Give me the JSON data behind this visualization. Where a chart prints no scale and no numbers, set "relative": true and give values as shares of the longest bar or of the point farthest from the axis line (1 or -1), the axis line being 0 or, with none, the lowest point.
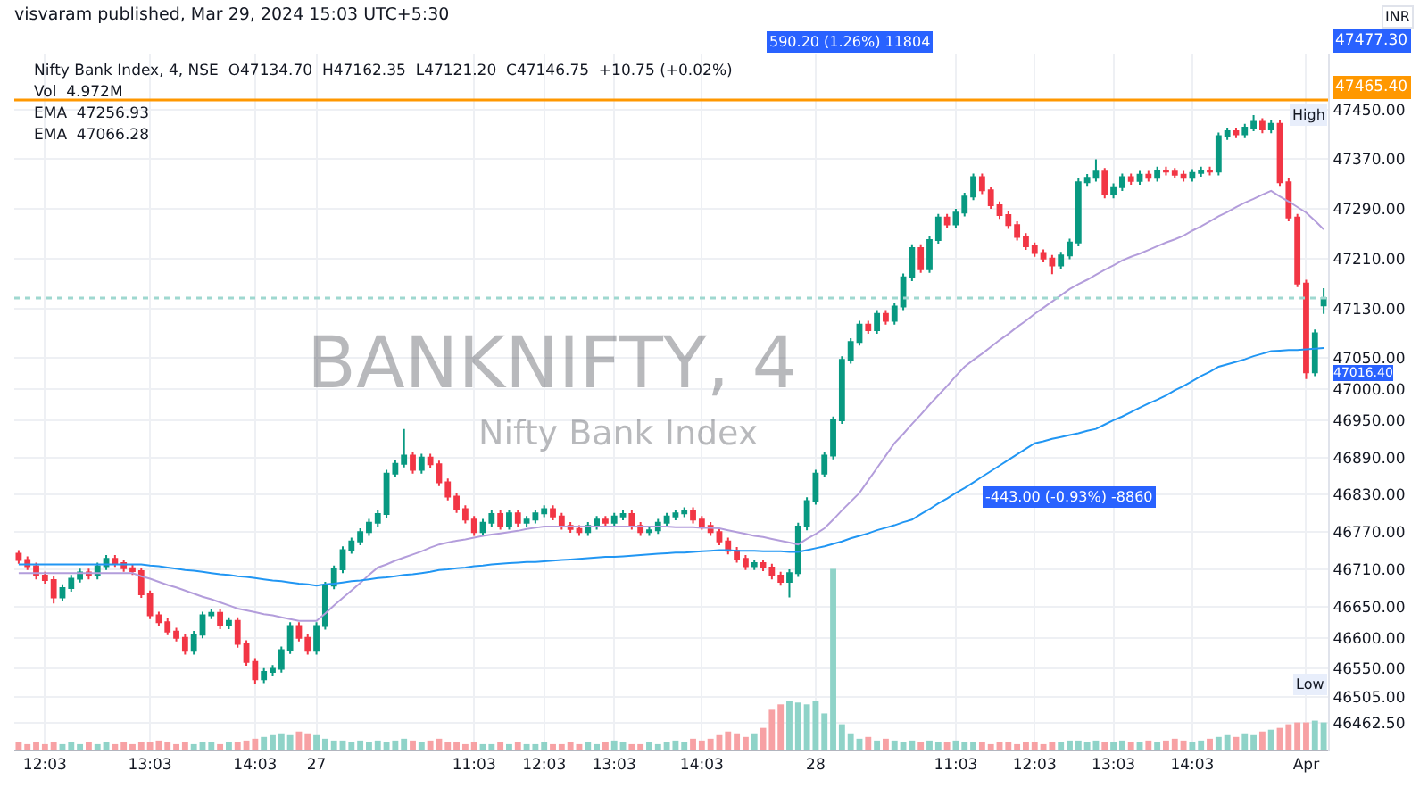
{
  "chart_data": [
    {
      "type": "candlestick",
      "title": "visvaram published, Mar 29, 2024 15:03 UTC+5:30",
      "categories": [
        null,
        null,
        null,
        "12:03",
        null,
        null,
        null,
        null,
        null,
        null,
        null,
        null,
        null,
        null,
        null,
        "13:03",
        null,
        null,
        null,
        null,
        null,
        null,
        null,
        null,
        null,
        null,
        null,
        "14:03",
        null,
        null,
        null,
        null,
        null,
        null,
        "27",
        null,
        null,
        null,
        null,
        null,
        null,
        null,
        null,
        null,
        null,
        null,
        null,
        null,
        null,
        null,
        null,
        null,
        "11:03",
        null,
        null,
        null,
        null,
        null,
        null,
        null,
        "12:03",
        null,
        null,
        null,
        null,
        null,
        null,
        null,
        "13:03",
        null,
        null,
        null,
        null,
        null,
        null,
        null,
        null,
        null,
        "14:03",
        null,
        null,
        null,
        null,
        null,
        null,
        null,
        null,
        null,
        null,
        null,
        null,
        "28",
        null,
        null,
        null,
        null,
        null,
        null,
        null,
        null,
        null,
        null,
        null,
        null,
        null,
        null,
        null,
        "11:03",
        null,
        null,
        null,
        null,
        null,
        null,
        null,
        null,
        "12:03",
        null,
        null,
        null,
        null,
        null,
        null,
        null,
        null,
        "13:03",
        null,
        null,
        null,
        null,
        null,
        null,
        null,
        null,
        "14:03",
        null,
        null,
        null,
        null,
        null,
        null,
        null,
        null,
        null,
        null,
        null,
        null,
        "Apr",
        null,
        null
      ],
      "ohlc": [
        [
          46735,
          46741,
          46719,
          46725
        ],
        [
          46725,
          46731,
          46709,
          46715
        ],
        [
          46715,
          46721,
          46694,
          46700
        ],
        [
          46700,
          46706,
          46687,
          46693
        ],
        [
          46693,
          46699,
          46655,
          46665
        ],
        [
          46665,
          46686,
          46659,
          46680
        ],
        [
          46680,
          46701,
          46674,
          46695
        ],
        [
          46695,
          46711,
          46689,
          46705
        ],
        [
          46705,
          46711,
          46694,
          46700
        ],
        [
          46700,
          46721,
          46694,
          46715
        ],
        [
          46715,
          46733,
          46709,
          46727
        ],
        [
          46727,
          46733,
          46714,
          46720
        ],
        [
          46720,
          46726,
          46706,
          46712
        ],
        [
          46712,
          46718,
          46701,
          46707
        ],
        [
          46707,
          46713,
          46664,
          46670
        ],
        [
          46670,
          46676,
          46630,
          46636
        ],
        [
          46636,
          46642,
          46619,
          46625
        ],
        [
          46625,
          46631,
          46604,
          46610
        ],
        [
          46610,
          46616,
          46594,
          46600
        ],
        [
          46600,
          46606,
          46573,
          46579
        ],
        [
          46579,
          46611,
          46573,
          46605
        ],
        [
          46605,
          46642,
          46599,
          46636
        ],
        [
          46636,
          46646,
          46630,
          46640
        ],
        [
          46640,
          46646,
          46614,
          46620
        ],
        [
          46620,
          46633,
          46614,
          46627
        ],
        [
          46627,
          46633,
          46584,
          46590
        ],
        [
          46590,
          46596,
          46555,
          46561
        ],
        [
          46561,
          46567,
          46525,
          46533
        ],
        [
          46533,
          46551,
          46527,
          46545
        ],
        [
          46545,
          46556,
          46539,
          46550
        ],
        [
          46550,
          46586,
          46544,
          46580
        ],
        [
          46580,
          46625,
          46574,
          46619
        ],
        [
          46619,
          46625,
          46594,
          46600
        ],
        [
          46600,
          46606,
          46573,
          46579
        ],
        [
          46579,
          46625,
          46573,
          46619
        ],
        [
          46619,
          46690,
          46613,
          46684
        ],
        [
          46684,
          46716,
          46678,
          46710
        ],
        [
          46710,
          46747,
          46704,
          46741
        ],
        [
          46741,
          46761,
          46735,
          46755
        ],
        [
          46755,
          46776,
          46749,
          46770
        ],
        [
          46770,
          46791,
          46764,
          46785
        ],
        [
          46785,
          46805,
          46779,
          46799
        ],
        [
          46799,
          46870,
          46793,
          46864
        ],
        [
          46864,
          46886,
          46858,
          46880
        ],
        [
          46880,
          46936,
          46874,
          46893
        ],
        [
          46893,
          46899,
          46864,
          46870
        ],
        [
          46870,
          46896,
          46864,
          46890
        ],
        [
          46890,
          46896,
          46873,
          46879
        ],
        [
          46879,
          46885,
          46844,
          46850
        ],
        [
          46850,
          46856,
          46821,
          46827
        ],
        [
          46827,
          46833,
          46801,
          46807
        ],
        [
          46807,
          46813,
          46784,
          46790
        ],
        [
          46790,
          46796,
          46764,
          46770
        ],
        [
          46770,
          46791,
          46764,
          46785
        ],
        [
          46785,
          46805,
          46779,
          46799
        ],
        [
          46799,
          46805,
          46774,
          46780
        ],
        [
          46780,
          46806,
          46774,
          46800
        ],
        [
          46800,
          46806,
          46779,
          46785
        ],
        [
          46785,
          46796,
          46779,
          46790
        ],
        [
          46790,
          46806,
          46784,
          46800
        ],
        [
          46800,
          46813,
          46794,
          46807
        ],
        [
          46807,
          46813,
          46789,
          46795
        ],
        [
          46795,
          46801,
          46774,
          46780
        ],
        [
          46780,
          46786,
          46769,
          46775
        ],
        [
          46775,
          46781,
          46764,
          46770
        ],
        [
          46770,
          46786,
          46764,
          46780
        ],
        [
          46780,
          46796,
          46774,
          46790
        ],
        [
          46790,
          46796,
          46779,
          46785
        ],
        [
          46785,
          46801,
          46779,
          46795
        ],
        [
          46795,
          46805,
          46789,
          46799
        ],
        [
          46799,
          46805,
          46774,
          46780
        ],
        [
          46780,
          46786,
          46764,
          46770
        ],
        [
          46770,
          46779,
          46764,
          46773
        ],
        [
          46773,
          46791,
          46767,
          46785
        ],
        [
          46785,
          46801,
          46779,
          46795
        ],
        [
          46795,
          46806,
          46789,
          46800
        ],
        [
          46800,
          46810,
          46794,
          46804
        ],
        [
          46804,
          46810,
          46784,
          46790
        ],
        [
          46790,
          46796,
          46774,
          46780
        ],
        [
          46780,
          46786,
          46764,
          46770
        ],
        [
          46770,
          46776,
          46749,
          46755
        ],
        [
          46755,
          46761,
          46734,
          46740
        ],
        [
          46740,
          46746,
          46721,
          46727
        ],
        [
          46727,
          46733,
          46709,
          46715
        ],
        [
          46715,
          46726,
          46709,
          46720
        ],
        [
          46720,
          46726,
          46707,
          46713
        ],
        [
          46713,
          46719,
          46694,
          46700
        ],
        [
          46700,
          46706,
          46684,
          46690
        ],
        [
          46690,
          46710,
          46665,
          46704
        ],
        [
          46704,
          46785,
          46698,
          46779
        ],
        [
          46779,
          46826,
          46773,
          46820
        ],
        [
          46820,
          46870,
          46814,
          46864
        ],
        [
          46864,
          46899,
          46858,
          46893
        ],
        [
          46893,
          46956,
          46887,
          46950
        ],
        [
          46950,
          47053,
          46944,
          47047
        ],
        [
          47047,
          47082,
          47041,
          47076
        ],
        [
          47076,
          47110,
          47070,
          47104
        ],
        [
          47104,
          47110,
          47089,
          47095
        ],
        [
          47095,
          47127,
          47089,
          47121
        ],
        [
          47121,
          47127,
          47104,
          47110
        ],
        [
          47110,
          47139,
          47104,
          47133
        ],
        [
          47133,
          47186,
          47127,
          47180
        ],
        [
          47180,
          47233,
          47174,
          47227
        ],
        [
          47227,
          47233,
          47187,
          47193
        ],
        [
          47193,
          47246,
          47187,
          47240
        ],
        [
          47240,
          47282,
          47234,
          47276
        ],
        [
          47276,
          47282,
          47259,
          47265
        ],
        [
          47265,
          47290,
          47259,
          47284
        ],
        [
          47284,
          47316,
          47278,
          47310
        ],
        [
          47310,
          47347,
          47304,
          47341
        ],
        [
          47341,
          47347,
          47314,
          47320
        ],
        [
          47320,
          47326,
          47290,
          47296
        ],
        [
          47296,
          47302,
          47274,
          47280
        ],
        [
          47280,
          47286,
          47258,
          47264
        ],
        [
          47264,
          47270,
          47239,
          47245
        ],
        [
          47245,
          47251,
          47224,
          47230
        ],
        [
          47230,
          47236,
          47213,
          47219
        ],
        [
          47219,
          47225,
          47204,
          47210
        ],
        [
          47210,
          47216,
          47185,
          47199
        ],
        [
          47199,
          47221,
          47193,
          47215
        ],
        [
          47215,
          47242,
          47209,
          47236
        ],
        [
          47236,
          47339,
          47230,
          47333
        ],
        [
          47333,
          47346,
          47327,
          47340
        ],
        [
          47340,
          47370,
          47334,
          47350
        ],
        [
          47350,
          47356,
          47307,
          47313
        ],
        [
          47313,
          47331,
          47307,
          47325
        ],
        [
          47325,
          47347,
          47319,
          47341
        ],
        [
          47341,
          47347,
          47329,
          47335
        ],
        [
          47335,
          47351,
          47329,
          47345
        ],
        [
          47345,
          47351,
          47334,
          47340
        ],
        [
          47340,
          47358,
          47334,
          47352
        ],
        [
          47352,
          47358,
          47344,
          47350
        ],
        [
          47350,
          47356,
          47339,
          47345
        ],
        [
          47345,
          47351,
          47334,
          47340
        ],
        [
          47340,
          47354,
          47334,
          47348
        ],
        [
          47348,
          47358,
          47342,
          47352
        ],
        [
          47352,
          47358,
          47344,
          47350
        ],
        [
          47350,
          47413,
          47344,
          47407
        ],
        [
          47407,
          47421,
          47401,
          47415
        ],
        [
          47415,
          47421,
          47404,
          47410
        ],
        [
          47410,
          47427,
          47404,
          47421
        ],
        [
          47421,
          47441,
          47415,
          47430
        ],
        [
          47430,
          47436,
          47412,
          47418
        ],
        [
          47418,
          47433,
          47412,
          47427
        ],
        [
          47427,
          47433,
          47327,
          47333
        ],
        [
          47333,
          47339,
          47270,
          47276
        ],
        [
          47276,
          47282,
          47164,
          47170
        ],
        [
          47170,
          47176,
          47016.4,
          47027
        ],
        [
          47027,
          47096,
          47021,
          47090
        ],
        [
          47134.7,
          47162.35,
          47121.2,
          47146.75
        ]
      ],
      "colors": [
        "#f23645",
        "#f23645",
        "#f23645",
        "#f23645",
        "#f23645",
        "#089981",
        "#089981",
        "#089981",
        "#f23645",
        "#089981",
        "#089981",
        "#f23645",
        "#f23645",
        "#f23645",
        "#f23645",
        "#f23645",
        "#f23645",
        "#f23645",
        "#f23645",
        "#f23645",
        "#089981",
        "#089981",
        "#089981",
        "#f23645",
        "#089981",
        "#f23645",
        "#f23645",
        "#f23645",
        "#089981",
        "#089981",
        "#089981",
        "#089981",
        "#f23645",
        "#f23645",
        "#089981",
        "#089981",
        "#089981",
        "#089981",
        "#089981",
        "#089981",
        "#089981",
        "#089981",
        "#089981",
        "#089981",
        "#089981",
        "#f23645",
        "#089981",
        "#f23645",
        "#f23645",
        "#f23645",
        "#f23645",
        "#f23645",
        "#f23645",
        "#089981",
        "#089981",
        "#f23645",
        "#089981",
        "#f23645",
        "#089981",
        "#089981",
        "#089981",
        "#f23645",
        "#f23645",
        "#f23645",
        "#f23645",
        "#089981",
        "#089981",
        "#f23645",
        "#089981",
        "#089981",
        "#f23645",
        "#f23645",
        "#089981",
        "#089981",
        "#089981",
        "#089981",
        "#089981",
        "#f23645",
        "#f23645",
        "#f23645",
        "#f23645",
        "#f23645",
        "#f23645",
        "#f23645",
        "#089981",
        "#f23645",
        "#f23645",
        "#f23645",
        "#089981",
        "#089981",
        "#089981",
        "#089981",
        "#089981",
        "#089981",
        "#089981",
        "#089981",
        "#089981",
        "#f23645",
        "#089981",
        "#f23645",
        "#089981",
        "#089981",
        "#089981",
        "#f23645",
        "#089981",
        "#089981",
        "#f23645",
        "#089981",
        "#089981",
        "#089981",
        "#f23645",
        "#f23645",
        "#f23645",
        "#f23645",
        "#f23645",
        "#f23645",
        "#f23645",
        "#f23645",
        "#f23645",
        "#089981",
        "#089981",
        "#089981",
        "#089981",
        "#089981",
        "#f23645",
        "#089981",
        "#089981",
        "#f23645",
        "#089981",
        "#f23645",
        "#089981",
        "#f23645",
        "#f23645",
        "#f23645",
        "#089981",
        "#089981",
        "#f23645",
        "#089981",
        "#089981",
        "#f23645",
        "#089981",
        "#089981",
        "#f23645",
        "#089981",
        "#f23645",
        "#f23645",
        "#f23645",
        "#f23645",
        "#089981",
        "#089981"
      ],
      "series": [
        {
          "type": "line",
          "color": "#b39ddb",
          "values": [
            46704,
            46704,
            46704,
            46704,
            46704,
            46704,
            46704,
            46704,
            46704,
            46704,
            46704,
            46704,
            46704,
            46704,
            46699,
            46695,
            46690,
            46685,
            46681,
            46676,
            46671,
            46666,
            46662,
            46657,
            46652,
            46647,
            46644,
            46641,
            46638,
            46636,
            46633,
            46630,
            46627,
            46627,
            46627,
            46639,
            46652,
            46664,
            46676,
            46688,
            46701,
            46713,
            46718,
            46724,
            46729,
            46734,
            46739,
            46745,
            46750,
            46753,
            46756,
            46758,
            46761,
            46764,
            46766,
            46768,
            46770,
            46772,
            46775,
            46777,
            46779,
            46779,
            46779,
            46779,
            46779,
            46779,
            46779,
            46779,
            46779,
            46779,
            46779,
            46779,
            46779,
            46779,
            46779,
            46778,
            46778,
            46778,
            46777,
            46777,
            46776,
            46773,
            46770,
            46767,
            46764,
            46762,
            46759,
            46756,
            46753,
            46750,
            46759,
            46767,
            46776,
            46790,
            46805,
            46819,
            46833,
            46853,
            46873,
            46893,
            46913,
            46928,
            46944,
            46959,
            46975,
            46990,
            47005,
            47021,
            47036,
            47047,
            47057,
            47068,
            47079,
            47089,
            47100,
            47110,
            47121,
            47131,
            47141,
            47151,
            47161,
            47169,
            47176,
            47184,
            47192,
            47199,
            47207,
            47213,
            47218,
            47224,
            47230,
            47236,
            47241,
            47247,
            47255,
            47262,
            47270,
            47278,
            47285,
            47293,
            47300,
            47306,
            47313,
            47319,
            47310,
            47302,
            47293,
            47284,
            47271,
            47257
          ]
        },
        {
          "type": "line",
          "color": "#2196f3",
          "values": [
            46718,
            46718,
            46718,
            46718,
            46718,
            46718,
            46718,
            46718,
            46718,
            46718,
            46718,
            46718,
            46718,
            46718,
            46718,
            46716,
            46715,
            46713,
            46711,
            46709,
            46708,
            46706,
            46704,
            46702,
            46701,
            46699,
            46698,
            46696,
            46694,
            46692,
            46691,
            46689,
            46687,
            46686,
            46684,
            46686,
            46687,
            46689,
            46691,
            46692,
            46694,
            46696,
            46697,
            46699,
            46701,
            46702,
            46704,
            46706,
            46709,
            46710,
            46712,
            46713,
            46715,
            46716,
            46718,
            46719,
            46720,
            46721,
            46722,
            46722,
            46723,
            46724,
            46725,
            46726,
            46727,
            46728,
            46729,
            46730,
            46730,
            46731,
            46732,
            46733,
            46734,
            46735,
            46736,
            46737,
            46737,
            46738,
            46739,
            46740,
            46741,
            46741,
            46740,
            46740,
            46740,
            46739,
            46739,
            46739,
            46738,
            46738,
            46741,
            46744,
            46747,
            46751,
            46755,
            46760,
            46764,
            46768,
            46773,
            46777,
            46781,
            46786,
            46790,
            46799,
            46807,
            46816,
            46824,
            46833,
            46841,
            46850,
            46859,
            46868,
            46877,
            46886,
            46895,
            46904,
            46913,
            46916,
            46920,
            46923,
            46926,
            46929,
            46933,
            46936,
            46943,
            46950,
            46956,
            46963,
            46970,
            46977,
            46983,
            46990,
            46998,
            47005,
            47013,
            47021,
            47028,
            47036,
            47040,
            47044,
            47048,
            47053,
            47057,
            47061,
            47062,
            47063,
            47063,
            47064,
            47065,
            47066
          ]
        }
      ],
      "ylim": [
        46420,
        47540
      ],
      "yticks": [
        {
          "value": 46462.5,
          "label": "46462.50"
        },
        {
          "value": 46505,
          "label": "46505.00"
        },
        {
          "value": 46550,
          "label": "46550.00"
        },
        {
          "value": 46600,
          "label": "46600.00"
        },
        {
          "value": 46650,
          "label": "46650.00"
        },
        {
          "value": 46710,
          "label": "46710.00"
        },
        {
          "value": 46770,
          "label": "46770.00"
        },
        {
          "value": 46830,
          "label": "46830.00"
        },
        {
          "value": 46890,
          "label": "46890.00"
        },
        {
          "value": 46950,
          "label": "46950.00"
        },
        {
          "value": 47000,
          "label": "47000.00"
        },
        {
          "value": 47050,
          "label": "47050.00"
        },
        {
          "value": 47130,
          "label": "47130.00"
        },
        {
          "value": 47210,
          "label": "47210.00"
        },
        {
          "value": 47290,
          "label": "47290.00"
        },
        {
          "value": 47370,
          "label": "47370.00"
        },
        {
          "value": 47450,
          "label": "47450.00"
        }
      ],
      "grid": true,
      "ref_lines": [
        {
          "axis": "y",
          "value": 47465.4,
          "label": "47465.40",
          "color": "#ff9800"
        },
        {
          "axis": "y",
          "value": 47146.75,
          "color": "#9fd8d0",
          "line_style": "dotted"
        }
      ],
      "annotations": [
        "Nifty Bank Index, 4, NSE  O47134.70  H47162.35  L47121.20  C47146.75  +10.75 (+0.02%)",
        "Vol  4.972M",
        "EMA  47256.93",
        "EMA  47066.28",
        "BANKNIFTY, 4",
        "Nifty Bank Index",
        "INR",
        "590.20 (1.26%) 11804",
        "-443.00 (-0.93%) -8860",
        "47477.30",
        "47016.40",
        {
          "text": "High",
          "y": 47441
        },
        {
          "text": "Low",
          "y": 46525
        }
      ]
    },
    {
      "type": "bar",
      "relative": true,
      "categories": [
        null,
        null,
        null,
        null,
        null,
        null,
        null,
        null,
        null,
        null,
        null,
        null,
        null,
        null,
        null,
        null,
        null,
        null,
        null,
        null,
        null,
        null,
        null,
        null,
        null,
        null,
        null,
        null,
        null,
        null,
        null,
        null,
        null,
        null,
        null,
        null,
        null,
        null,
        null,
        null,
        null,
        null,
        null,
        null,
        null,
        null,
        null,
        null,
        null,
        null,
        null,
        null,
        null,
        null,
        null,
        null,
        null,
        null,
        null,
        null,
        null,
        null,
        null,
        null,
        null,
        null,
        null,
        null,
        null,
        null,
        null,
        null,
        null,
        null,
        null,
        null,
        null,
        null,
        null,
        null,
        null,
        null,
        null,
        null,
        null,
        null,
        null,
        null,
        null,
        null,
        null,
        null,
        null,
        null,
        null,
        null,
        null,
        null,
        null,
        null,
        null,
        null,
        null,
        null,
        null,
        null,
        null,
        null,
        null,
        null,
        null,
        null,
        null,
        null,
        null,
        null,
        null,
        null,
        null,
        null,
        null,
        null,
        null,
        null,
        null,
        null,
        null,
        null,
        null,
        null,
        null,
        null,
        null,
        null,
        null,
        null,
        null,
        null,
        null,
        null,
        null,
        null,
        null,
        null,
        null,
        null,
        null,
        null,
        null,
        null
      ],
      "values": [
        0.04,
        0.03,
        0.04,
        0.03,
        0.04,
        0.03,
        0.04,
        0.03,
        0.04,
        0.03,
        0.04,
        0.03,
        0.04,
        0.03,
        0.04,
        0.04,
        0.05,
        0.04,
        0.03,
        0.04,
        0.03,
        0.04,
        0.04,
        0.03,
        0.04,
        0.04,
        0.05,
        0.06,
        0.07,
        0.08,
        0.09,
        0.08,
        0.1,
        0.09,
        0.08,
        0.06,
        0.05,
        0.05,
        0.04,
        0.05,
        0.04,
        0.05,
        0.04,
        0.05,
        0.06,
        0.05,
        0.04,
        0.05,
        0.06,
        0.04,
        0.04,
        0.03,
        0.04,
        0.03,
        0.03,
        0.04,
        0.03,
        0.04,
        0.03,
        0.03,
        0.04,
        0.03,
        0.03,
        0.04,
        0.03,
        0.04,
        0.03,
        0.04,
        0.05,
        0.04,
        0.03,
        0.03,
        0.04,
        0.03,
        0.04,
        0.05,
        0.04,
        0.06,
        0.05,
        0.06,
        0.08,
        0.1,
        0.09,
        0.07,
        0.09,
        0.12,
        0.22,
        0.25,
        0.27,
        0.26,
        0.25,
        0.27,
        0.2,
        1.0,
        0.14,
        0.09,
        0.06,
        0.07,
        0.05,
        0.06,
        0.05,
        0.04,
        0.05,
        0.04,
        0.05,
        0.04,
        0.04,
        0.05,
        0.04,
        0.04,
        0.04,
        0.03,
        0.04,
        0.04,
        0.03,
        0.04,
        0.04,
        0.03,
        0.04,
        0.04,
        0.05,
        0.05,
        0.04,
        0.05,
        0.04,
        0.04,
        0.05,
        0.04,
        0.04,
        0.05,
        0.04,
        0.05,
        0.06,
        0.05,
        0.04,
        0.05,
        0.06,
        0.07,
        0.08,
        0.07,
        0.09,
        0.08,
        0.1,
        0.11,
        0.12,
        0.14,
        0.15,
        0.15,
        0.16,
        0.15
      ],
      "colors": [
        "#f7a1a4",
        "#f7a1a4",
        "#f7a1a4",
        "#f7a1a4",
        "#f7a1a4",
        "#8fd3c8",
        "#8fd3c8",
        "#8fd3c8",
        "#f7a1a4",
        "#8fd3c8",
        "#8fd3c8",
        "#f7a1a4",
        "#f7a1a4",
        "#f7a1a4",
        "#f7a1a4",
        "#f7a1a4",
        "#f7a1a4",
        "#f7a1a4",
        "#f7a1a4",
        "#f7a1a4",
        "#8fd3c8",
        "#8fd3c8",
        "#8fd3c8",
        "#f7a1a4",
        "#8fd3c8",
        "#f7a1a4",
        "#f7a1a4",
        "#f7a1a4",
        "#8fd3c8",
        "#8fd3c8",
        "#8fd3c8",
        "#8fd3c8",
        "#f7a1a4",
        "#f7a1a4",
        "#8fd3c8",
        "#8fd3c8",
        "#8fd3c8",
        "#8fd3c8",
        "#8fd3c8",
        "#8fd3c8",
        "#8fd3c8",
        "#8fd3c8",
        "#8fd3c8",
        "#8fd3c8",
        "#8fd3c8",
        "#f7a1a4",
        "#8fd3c8",
        "#f7a1a4",
        "#f7a1a4",
        "#f7a1a4",
        "#f7a1a4",
        "#f7a1a4",
        "#f7a1a4",
        "#8fd3c8",
        "#8fd3c8",
        "#f7a1a4",
        "#8fd3c8",
        "#f7a1a4",
        "#8fd3c8",
        "#8fd3c8",
        "#8fd3c8",
        "#f7a1a4",
        "#f7a1a4",
        "#f7a1a4",
        "#f7a1a4",
        "#8fd3c8",
        "#8fd3c8",
        "#f7a1a4",
        "#8fd3c8",
        "#8fd3c8",
        "#f7a1a4",
        "#f7a1a4",
        "#8fd3c8",
        "#8fd3c8",
        "#8fd3c8",
        "#8fd3c8",
        "#8fd3c8",
        "#f7a1a4",
        "#f7a1a4",
        "#f7a1a4",
        "#f7a1a4",
        "#f7a1a4",
        "#f7a1a4",
        "#f7a1a4",
        "#8fd3c8",
        "#f7a1a4",
        "#f7a1a4",
        "#f7a1a4",
        "#8fd3c8",
        "#8fd3c8",
        "#8fd3c8",
        "#8fd3c8",
        "#8fd3c8",
        "#8fd3c8",
        "#8fd3c8",
        "#8fd3c8",
        "#8fd3c8",
        "#f7a1a4",
        "#8fd3c8",
        "#f7a1a4",
        "#8fd3c8",
        "#8fd3c8",
        "#8fd3c8",
        "#f7a1a4",
        "#8fd3c8",
        "#8fd3c8",
        "#f7a1a4",
        "#8fd3c8",
        "#8fd3c8",
        "#8fd3c8",
        "#f7a1a4",
        "#f7a1a4",
        "#f7a1a4",
        "#f7a1a4",
        "#f7a1a4",
        "#f7a1a4",
        "#f7a1a4",
        "#f7a1a4",
        "#f7a1a4",
        "#8fd3c8",
        "#8fd3c8",
        "#8fd3c8",
        "#8fd3c8",
        "#8fd3c8",
        "#f7a1a4",
        "#8fd3c8",
        "#8fd3c8",
        "#f7a1a4",
        "#8fd3c8",
        "#f7a1a4",
        "#8fd3c8",
        "#f7a1a4",
        "#f7a1a4",
        "#f7a1a4",
        "#8fd3c8",
        "#8fd3c8",
        "#f7a1a4",
        "#8fd3c8",
        "#8fd3c8",
        "#f7a1a4",
        "#8fd3c8",
        "#8fd3c8",
        "#f7a1a4",
        "#8fd3c8",
        "#f7a1a4",
        "#f7a1a4",
        "#f7a1a4",
        "#f7a1a4",
        "#8fd3c8",
        "#8fd3c8"
      ]
    }
  ]
}
